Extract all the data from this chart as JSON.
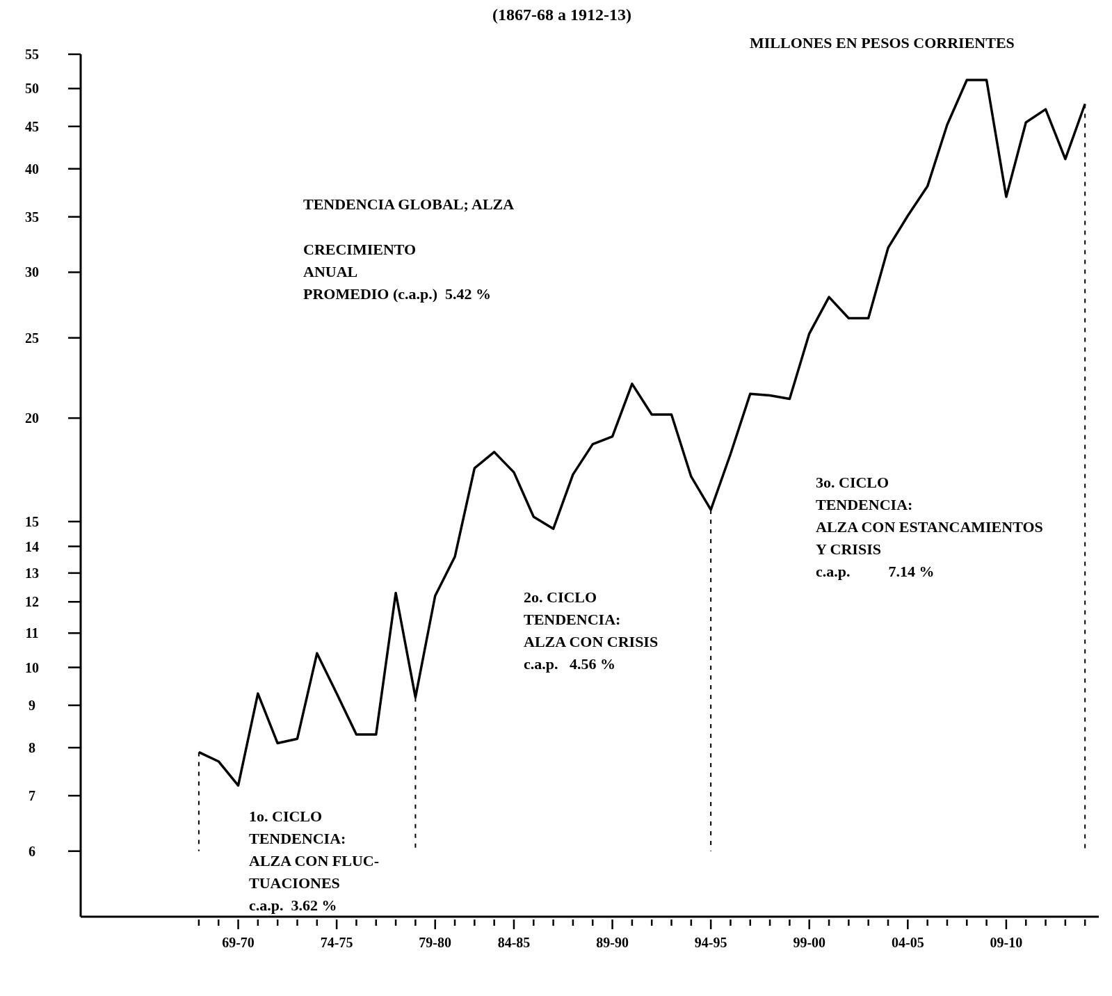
{
  "chart_data": {
    "type": "line",
    "subtitle": "(1867-68 a 1912-13)",
    "categories": [
      null,
      null,
      "69-70",
      null,
      null,
      null,
      null,
      "74-75",
      null,
      null,
      null,
      null,
      "79-80",
      null,
      null,
      null,
      "84-85",
      null,
      null,
      null,
      null,
      "89-90",
      null,
      null,
      null,
      null,
      "94-95",
      null,
      null,
      null,
      null,
      "99-00",
      null,
      null,
      null,
      null,
      "04-05",
      null,
      null,
      null,
      null,
      "09-10",
      null,
      null,
      null,
      null
    ],
    "series": [
      {
        "color": "#000000",
        "values": [
          7.9,
          7.7,
          7.2,
          9.3,
          8.1,
          8.2,
          10.4,
          9.3,
          8.3,
          8.3,
          12.3,
          9.2,
          12.2,
          13.6,
          17.4,
          18.2,
          17.2,
          15.2,
          14.7,
          17.1,
          18.6,
          19.0,
          22.0,
          20.2,
          20.2,
          17.0,
          15.5,
          18.1,
          21.4,
          21.3,
          21.1,
          25.3,
          28.0,
          26.4,
          26.4,
          32.1,
          35.1,
          38.1,
          45.2,
          51.2,
          51.2,
          37.0,
          45.5,
          47.2,
          41.1,
          47.9
        ]
      }
    ],
    "log": "y",
    "ylim": [
      5,
      55
    ],
    "yticks": [
      6,
      7,
      8,
      9,
      10,
      11,
      12,
      13,
      14,
      15,
      20,
      25,
      30,
      35,
      40,
      45,
      50,
      55
    ],
    "ref_lines": [
      {
        "axis": "x",
        "value": "94-95",
        "color": "#000000",
        "line_style": "dashed"
      }
    ],
    "annotations": [
      "MILLONES EN PESOS CORRIENTES",
      "TENDENCIA GLOBAL; ALZA",
      "CRECIMIENTO\nANUAL\nPROMEDIO (c.a.p.)  5.42 %",
      "1o. CICLO\nTENDENCIA:\nALZA CON FLUC-\nTUACIONES\nc.a.p.  3.62 %",
      "2o. CICLO\nTENDENCIA:\nALZA CON CRISIS\nc.a.p.   4.56 %",
      "3o. CICLO\nTENDENCIA:\nALZA CON ESTANCAMIENTOS\nY CRISIS\nc.a.p.          7.14 %"
    ],
    "grid": false,
    "legend": false
  }
}
